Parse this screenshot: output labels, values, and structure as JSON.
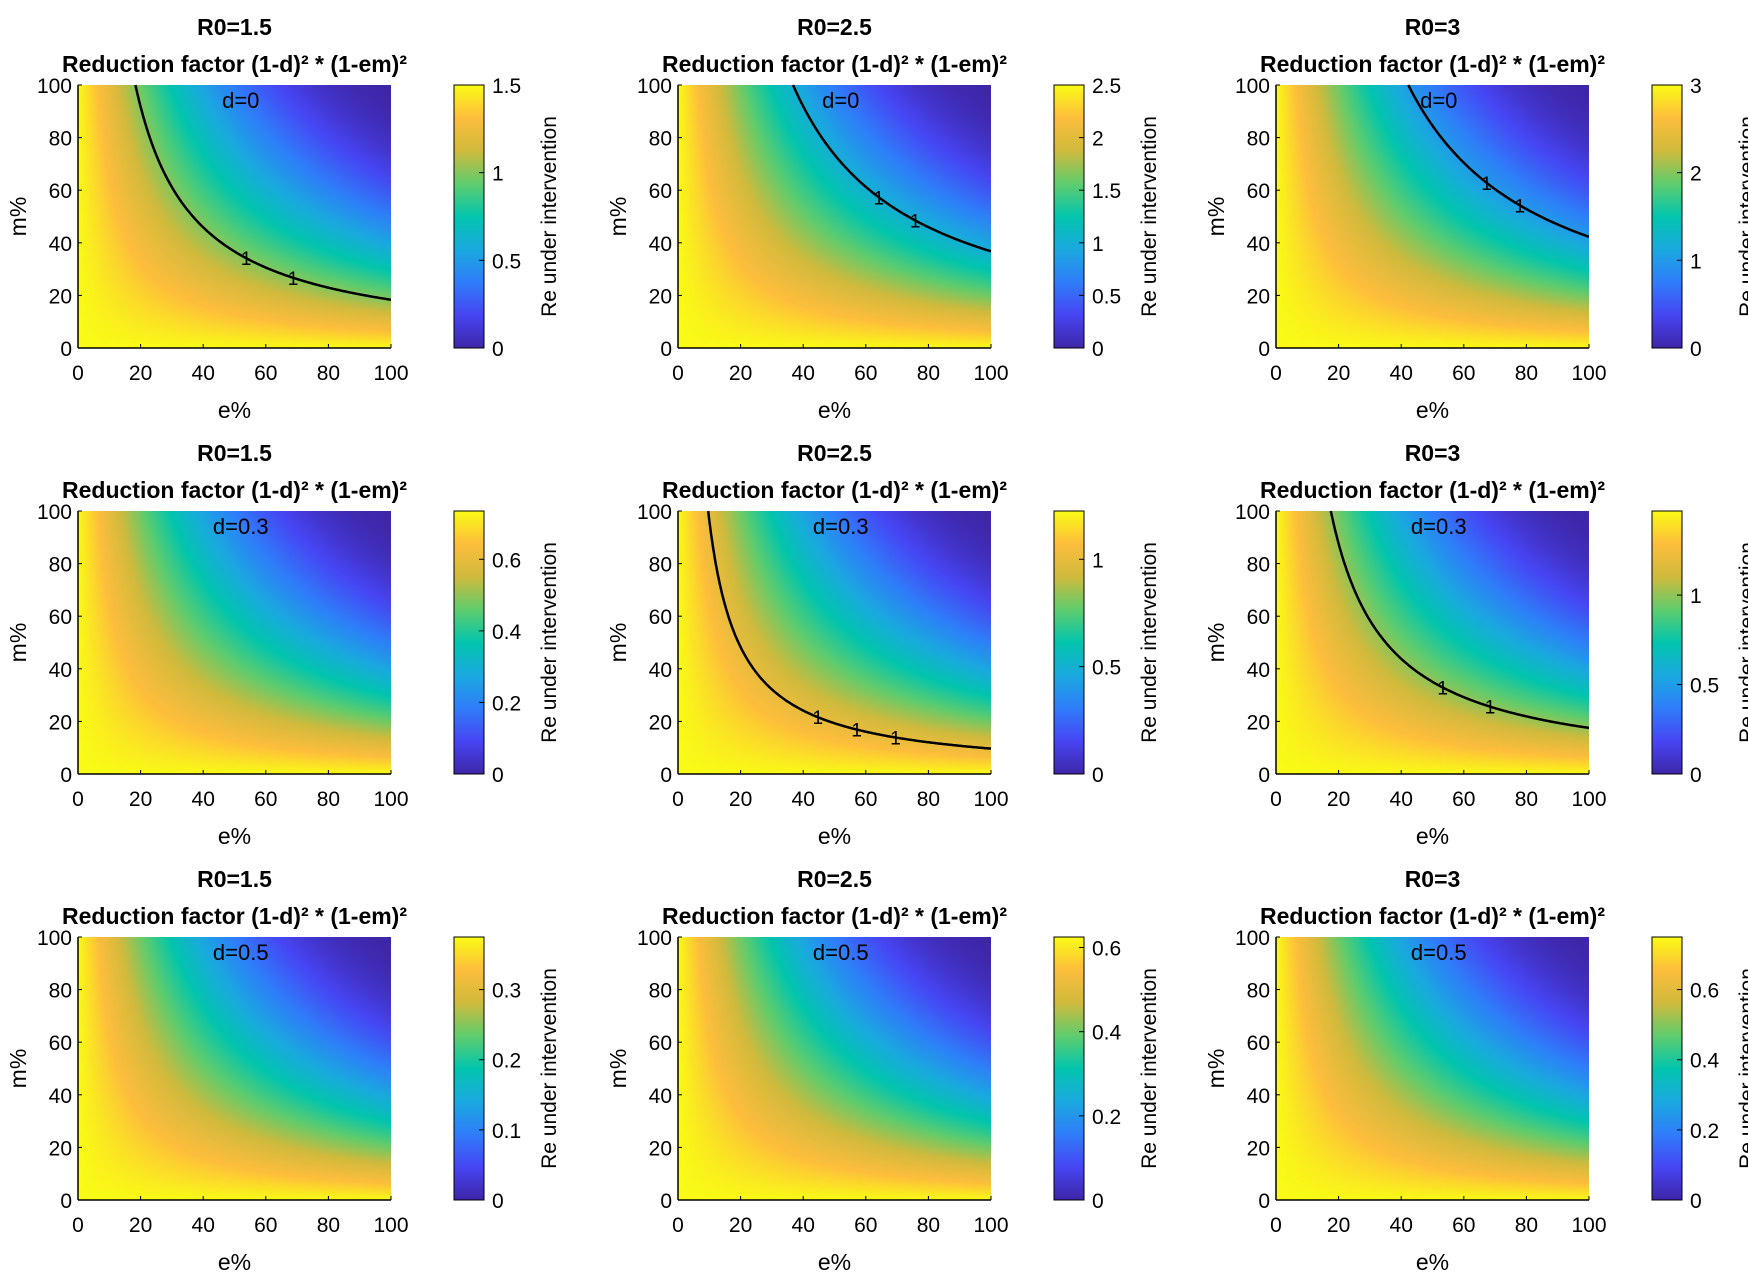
{
  "colors": {
    "colormap": [
      "#3e26a8",
      "#4745f3",
      "#2f7dfa",
      "#1aa9df",
      "#02c5ad",
      "#5fcc6d",
      "#d0ba3c",
      "#fdbd3c",
      "#f9fb15"
    ],
    "contour": "#000000",
    "axis": "#000000",
    "background": "#ffffff"
  },
  "chart_data": [
    {
      "type": "heatmap",
      "title": "R0=1.5",
      "subtitle": "Reduction factor (1-d)² * (1-em)²",
      "annotation": "d=0",
      "R0": 1.5,
      "d": 0,
      "xlabel": "e%",
      "ylabel": "m%",
      "xlim": [
        0,
        100
      ],
      "ylim": [
        0,
        100
      ],
      "xticks": [
        0,
        20,
        40,
        60,
        80,
        100
      ],
      "yticks": [
        0,
        20,
        40,
        60,
        80,
        100
      ],
      "colorbar_label": "Re under intervention",
      "clim": [
        0,
        1.5
      ],
      "colorbar_ticks": [
        0,
        0.5,
        1,
        1.5
      ],
      "colorbar_tick_labels": [
        "0",
        "0.5",
        "1",
        "1.5"
      ],
      "contour_level": 1,
      "contour_labels": [
        "1",
        "1"
      ]
    },
    {
      "type": "heatmap",
      "title": "R0=2.5",
      "subtitle": "Reduction factor (1-d)² * (1-em)²",
      "annotation": "d=0",
      "R0": 2.5,
      "d": 0,
      "xlabel": "e%",
      "ylabel": "m%",
      "xlim": [
        0,
        100
      ],
      "ylim": [
        0,
        100
      ],
      "xticks": [
        0,
        20,
        40,
        60,
        80,
        100
      ],
      "yticks": [
        0,
        20,
        40,
        60,
        80,
        100
      ],
      "colorbar_label": "Re under intervention",
      "clim": [
        0,
        2.5
      ],
      "colorbar_ticks": [
        0,
        0.5,
        1,
        1.5,
        2,
        2.5
      ],
      "colorbar_tick_labels": [
        "0",
        "0.5",
        "1",
        "1.5",
        "2",
        "2.5"
      ],
      "contour_level": 1,
      "contour_labels": [
        "1",
        "1"
      ]
    },
    {
      "type": "heatmap",
      "title": "R0=3",
      "subtitle": "Reduction factor (1-d)² * (1-em)²",
      "annotation": "d=0",
      "R0": 3,
      "d": 0,
      "xlabel": "e%",
      "ylabel": "m%",
      "xlim": [
        0,
        100
      ],
      "ylim": [
        0,
        100
      ],
      "xticks": [
        0,
        20,
        40,
        60,
        80,
        100
      ],
      "yticks": [
        0,
        20,
        40,
        60,
        80,
        100
      ],
      "colorbar_label": "Re under intervention",
      "clim": [
        0,
        3
      ],
      "colorbar_ticks": [
        0,
        1,
        2,
        3
      ],
      "colorbar_tick_labels": [
        "0",
        "1",
        "2",
        "3"
      ],
      "contour_level": 1,
      "contour_labels": [
        "1",
        "1"
      ]
    },
    {
      "type": "heatmap",
      "title": "R0=1.5",
      "subtitle": "Reduction factor (1-d)² * (1-em)²",
      "annotation": "d=0.3",
      "R0": 1.5,
      "d": 0.3,
      "xlabel": "e%",
      "ylabel": "m%",
      "xlim": [
        0,
        100
      ],
      "ylim": [
        0,
        100
      ],
      "xticks": [
        0,
        20,
        40,
        60,
        80,
        100
      ],
      "yticks": [
        0,
        20,
        40,
        60,
        80,
        100
      ],
      "colorbar_label": "Re under intervention",
      "clim": [
        0,
        0.735
      ],
      "colorbar_ticks": [
        0,
        0.2,
        0.4,
        0.6
      ],
      "colorbar_tick_labels": [
        "0",
        "0.2",
        "0.4",
        "0.6"
      ],
      "contour_level": 1,
      "contour_labels": []
    },
    {
      "type": "heatmap",
      "title": "R0=2.5",
      "subtitle": "Reduction factor (1-d)² * (1-em)²",
      "annotation": "d=0.3",
      "R0": 2.5,
      "d": 0.3,
      "xlabel": "e%",
      "ylabel": "m%",
      "xlim": [
        0,
        100
      ],
      "ylim": [
        0,
        100
      ],
      "xticks": [
        0,
        20,
        40,
        60,
        80,
        100
      ],
      "yticks": [
        0,
        20,
        40,
        60,
        80,
        100
      ],
      "colorbar_label": "Re under intervention",
      "clim": [
        0,
        1.225
      ],
      "colorbar_ticks": [
        0,
        0.5,
        1
      ],
      "colorbar_tick_labels": [
        "0",
        "0.5",
        "1"
      ],
      "contour_level": 1,
      "contour_labels": [
        "1",
        "1",
        "1"
      ]
    },
    {
      "type": "heatmap",
      "title": "R0=3",
      "subtitle": "Reduction factor (1-d)² * (1-em)²",
      "annotation": "d=0.3",
      "R0": 3,
      "d": 0.3,
      "xlabel": "e%",
      "ylabel": "m%",
      "xlim": [
        0,
        100
      ],
      "ylim": [
        0,
        100
      ],
      "xticks": [
        0,
        20,
        40,
        60,
        80,
        100
      ],
      "yticks": [
        0,
        20,
        40,
        60,
        80,
        100
      ],
      "colorbar_label": "Re under intervention",
      "clim": [
        0,
        1.47
      ],
      "colorbar_ticks": [
        0,
        0.5,
        1
      ],
      "colorbar_tick_labels": [
        "0",
        "0.5",
        "1"
      ],
      "contour_level": 1,
      "contour_labels": [
        "1",
        "1"
      ]
    },
    {
      "type": "heatmap",
      "title": "R0=1.5",
      "subtitle": "Reduction factor (1-d)² * (1-em)²",
      "annotation": "d=0.5",
      "R0": 1.5,
      "d": 0.5,
      "xlabel": "e%",
      "ylabel": "m%",
      "xlim": [
        0,
        100
      ],
      "ylim": [
        0,
        100
      ],
      "xticks": [
        0,
        20,
        40,
        60,
        80,
        100
      ],
      "yticks": [
        0,
        20,
        40,
        60,
        80,
        100
      ],
      "colorbar_label": "Re under intervention",
      "clim": [
        0,
        0.375
      ],
      "colorbar_ticks": [
        0,
        0.1,
        0.2,
        0.3
      ],
      "colorbar_tick_labels": [
        "0",
        "0.1",
        "0.2",
        "0.3"
      ],
      "contour_level": 1,
      "contour_labels": []
    },
    {
      "type": "heatmap",
      "title": "R0=2.5",
      "subtitle": "Reduction factor (1-d)² * (1-em)²",
      "annotation": "d=0.5",
      "R0": 2.5,
      "d": 0.5,
      "xlabel": "e%",
      "ylabel": "m%",
      "xlim": [
        0,
        100
      ],
      "ylim": [
        0,
        100
      ],
      "xticks": [
        0,
        20,
        40,
        60,
        80,
        100
      ],
      "yticks": [
        0,
        20,
        40,
        60,
        80,
        100
      ],
      "colorbar_label": "Re under intervention",
      "clim": [
        0,
        0.625
      ],
      "colorbar_ticks": [
        0,
        0.2,
        0.4,
        0.6
      ],
      "colorbar_tick_labels": [
        "0",
        "0.2",
        "0.4",
        "0.6"
      ],
      "contour_level": 1,
      "contour_labels": []
    },
    {
      "type": "heatmap",
      "title": "R0=3",
      "subtitle": "Reduction factor (1-d)² * (1-em)²",
      "annotation": "d=0.5",
      "R0": 3,
      "d": 0.5,
      "xlabel": "e%",
      "ylabel": "m%",
      "xlim": [
        0,
        100
      ],
      "ylim": [
        0,
        100
      ],
      "xticks": [
        0,
        20,
        40,
        60,
        80,
        100
      ],
      "yticks": [
        0,
        20,
        40,
        60,
        80,
        100
      ],
      "colorbar_label": "Re under intervention",
      "clim": [
        0,
        0.75
      ],
      "colorbar_ticks": [
        0,
        0.2,
        0.4,
        0.6
      ],
      "colorbar_tick_labels": [
        "0",
        "0.2",
        "0.4",
        "0.6"
      ],
      "contour_level": 1,
      "contour_labels": []
    }
  ]
}
